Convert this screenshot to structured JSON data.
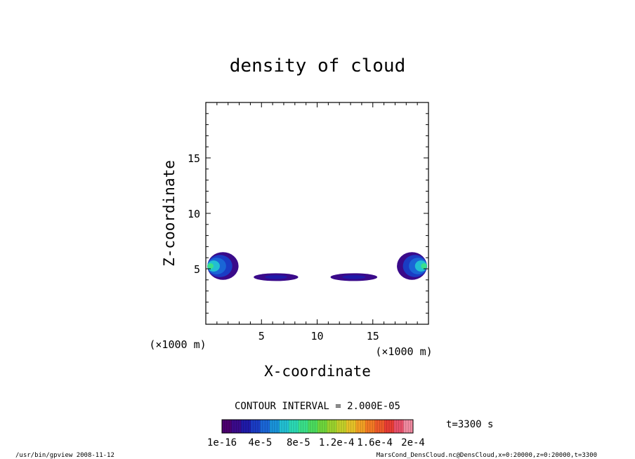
{
  "chart_data": {
    "type": "heatmap",
    "title": "density of cloud",
    "xlabel": "X-coordinate",
    "ylabel": "Z-coordinate",
    "x_unit": "(×1000 m)",
    "y_unit": "(×1000 m)",
    "xlim": [
      0,
      20
    ],
    "ylim": [
      0,
      20
    ],
    "x_ticks": [
      5,
      10,
      15
    ],
    "y_ticks": [
      5,
      10,
      15
    ],
    "grid": false,
    "contour_interval_text": "CONTOUR INTERVAL = 2.000E-05",
    "time_text": "t=3300 s",
    "colorbar": {
      "labels": [
        "1e-16",
        "4e-5",
        "8e-5",
        "1.2e-4",
        "1.6e-4",
        "2e-4"
      ],
      "min": 1e-16,
      "max": 0.0002,
      "colors": [
        "#4b006e",
        "#3a0a8a",
        "#1f1aa8",
        "#1a3cc4",
        "#1a66d6",
        "#1a93d9",
        "#22bfd2",
        "#2bd9b4",
        "#3ae08a",
        "#4cdc5e",
        "#6fd63c",
        "#9bd22e",
        "#c4d02a",
        "#e6c228",
        "#f2a024",
        "#f27a24",
        "#ee5a2a",
        "#e83c34",
        "#e8506a",
        "#f08aa0"
      ]
    },
    "regions": [
      {
        "name": "left-core",
        "x": [
          0,
          2.8
        ],
        "z": [
          4.0,
          6.5
        ],
        "peak": 8e-05
      },
      {
        "name": "left-inner-band",
        "x": [
          4.3,
          8.3
        ],
        "z": [
          3.9,
          4.6
        ],
        "peak": 2e-05
      },
      {
        "name": "center-right-band",
        "x": [
          11.2,
          15.4
        ],
        "z": [
          3.9,
          4.6
        ],
        "peak": 2e-05
      },
      {
        "name": "right-core",
        "x": [
          17.3,
          20
        ],
        "z": [
          4.0,
          6.5
        ],
        "peak": 8e-05
      }
    ]
  },
  "footer": {
    "left": "/usr/bin/gpview   2008-11-12",
    "right": "MarsCond_DensCloud.nc@DensCloud,x=0:20000,z=0:20000,t=3300"
  }
}
